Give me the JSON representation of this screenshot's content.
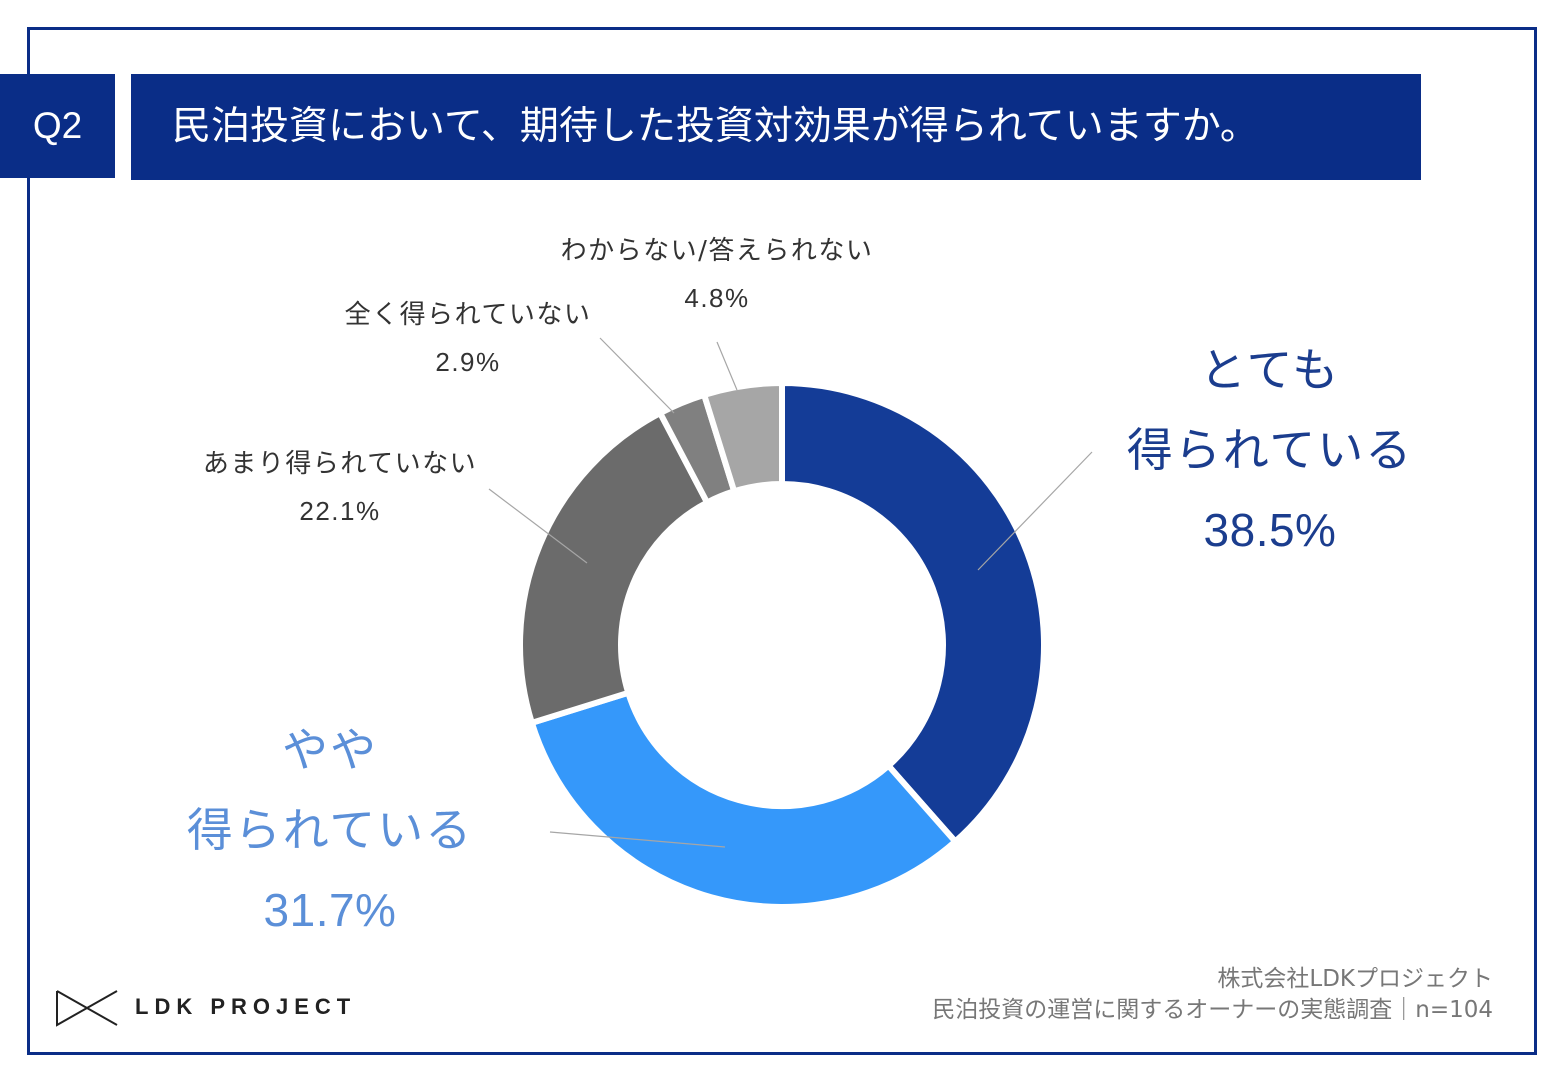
{
  "header": {
    "question_number": "Q2"
  },
  "chart_data": {
    "type": "pie",
    "donut": true,
    "title": "民泊投資において、期待した投資対効果が得られていますか。",
    "slices": [
      {
        "label_lines": [
          "とても",
          "得られている"
        ],
        "value": 38.5,
        "value_label": "38.5%",
        "color": "#143C97",
        "label_color": "#1B3D8E"
      },
      {
        "label_lines": [
          "やや",
          "得られている"
        ],
        "value": 31.7,
        "value_label": "31.7%",
        "color": "#3598FA",
        "label_color": "#5B8FD8"
      },
      {
        "label_lines": [
          "あまり得られていない"
        ],
        "value": 22.1,
        "value_label": "22.1%",
        "color": "#6B6B6B",
        "label_color": "#333333"
      },
      {
        "label_lines": [
          "全く得られていない"
        ],
        "value": 2.9,
        "value_label": "2.9%",
        "color": "#808080",
        "label_color": "#333333"
      },
      {
        "label_lines": [
          "わからない/答えられない"
        ],
        "value": 4.8,
        "value_label": "4.8%",
        "color": "#A6A6A6",
        "label_color": "#333333"
      }
    ]
  },
  "footer": {
    "logo_icon": "ldk-project-logo-icon",
    "logo_text": "LDK PROJECT",
    "company": "株式会社LDKプロジェクト",
    "survey_note": "民泊投資の運営に関するオーナーの実態調査｜n=104"
  },
  "colors": {
    "brand_navy": "#0A2D87",
    "frame": "#0A2D87",
    "leader_line": "#A6A6A6",
    "footer_text": "#777777"
  }
}
